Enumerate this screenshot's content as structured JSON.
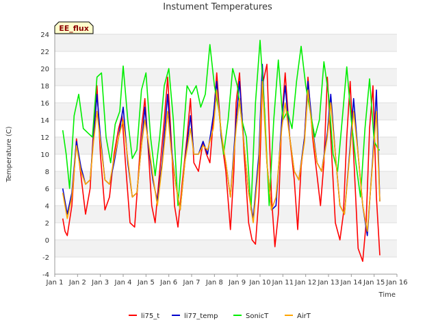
{
  "chart_data": {
    "type": "line",
    "title": "Instument Temperatures",
    "xlabel": "Time",
    "ylabel": "Temperature (C)",
    "badge": "EE_flux",
    "xlim": [
      1,
      16
    ],
    "ylim": [
      -4,
      24
    ],
    "xticks": [
      1,
      2,
      3,
      4,
      5,
      6,
      7,
      8,
      9,
      10,
      11,
      12,
      13,
      14,
      15,
      16
    ],
    "xtick_labels": [
      "Jan 1",
      "Jan 2",
      "Jan 3",
      "Jan 4",
      "Jan 5",
      "Jan 6",
      "Jan 7",
      "Jan 8",
      "Jan 9",
      "Jan 10",
      "Jan 11",
      "Jan 12",
      "Jan 13",
      "Jan 14",
      "Jan 15",
      "Jan 16"
    ],
    "yticks": [
      -4,
      -2,
      0,
      2,
      4,
      6,
      8,
      10,
      12,
      14,
      16,
      18,
      20,
      22,
      24
    ],
    "ytick_labels": [
      "-4",
      "-2",
      "0",
      "2",
      "4",
      "6",
      "8",
      "10",
      "12",
      "14",
      "16",
      "18",
      "20",
      "22",
      "24"
    ],
    "series": [
      {
        "name": "li75_t",
        "color": "#ff0000",
        "x": [
          1.35,
          1.45,
          1.55,
          1.75,
          1.95,
          2.15,
          2.35,
          2.55,
          2.7,
          2.85,
          3.0,
          3.2,
          3.4,
          3.6,
          3.8,
          3.95,
          4.1,
          4.3,
          4.5,
          4.65,
          4.8,
          4.95,
          5.1,
          5.25,
          5.4,
          5.6,
          5.8,
          5.95,
          6.1,
          6.25,
          6.4,
          6.6,
          6.8,
          6.95,
          7.1,
          7.3,
          7.5,
          7.65,
          7.8,
          7.95,
          8.1,
          8.3,
          8.5,
          8.7,
          8.85,
          8.95,
          9.1,
          9.3,
          9.5,
          9.65,
          9.8,
          9.95,
          10.1,
          10.3,
          10.5,
          10.65,
          10.8,
          10.95,
          11.1,
          11.3,
          11.5,
          11.65,
          11.8,
          11.95,
          12.1,
          12.3,
          12.5,
          12.65,
          12.8,
          12.95,
          13.1,
          13.3,
          13.5,
          13.65,
          13.8,
          13.95,
          14.1,
          14.3,
          14.5,
          14.65,
          14.8,
          14.95,
          15.1,
          15.25
        ],
        "y": [
          2.5,
          1.0,
          0.5,
          4.0,
          11.8,
          7.5,
          3.0,
          6.0,
          13.0,
          18.0,
          10.0,
          3.5,
          5.0,
          10.0,
          13.0,
          14.5,
          9.0,
          2.0,
          1.5,
          7.0,
          13.0,
          16.5,
          10.5,
          4.0,
          2.0,
          8.0,
          14.0,
          19.0,
          12.0,
          4.0,
          1.5,
          7.0,
          12.0,
          16.5,
          9.0,
          8.0,
          11.5,
          10.0,
          9.0,
          14.0,
          19.5,
          12.0,
          8.0,
          1.2,
          8.0,
          16.0,
          19.5,
          10.0,
          2.0,
          0.0,
          -0.5,
          5.0,
          18.0,
          20.5,
          5.0,
          -0.8,
          3.0,
          14.0,
          19.5,
          12.0,
          7.0,
          1.2,
          8.5,
          12.0,
          19.0,
          12.0,
          7.5,
          4.0,
          9.0,
          19.0,
          12.0,
          2.0,
          0.0,
          3.0,
          12.0,
          18.5,
          10.0,
          -1.0,
          -2.5,
          2.0,
          13.0,
          18.0,
          5.0,
          -1.8
        ]
      },
      {
        "name": "li77_temp",
        "color": "#0000cc",
        "x": [
          1.35,
          1.55,
          1.75,
          1.95,
          2.15,
          2.35,
          2.55,
          2.7,
          2.85,
          3.0,
          3.2,
          3.4,
          3.6,
          3.8,
          4.0,
          4.2,
          4.4,
          4.6,
          4.8,
          4.95,
          5.1,
          5.3,
          5.5,
          5.7,
          5.95,
          6.1,
          6.3,
          6.5,
          6.7,
          6.95,
          7.1,
          7.3,
          7.5,
          7.7,
          7.95,
          8.1,
          8.3,
          8.5,
          8.7,
          8.95,
          9.1,
          9.3,
          9.5,
          9.7,
          9.95,
          10.1,
          10.3,
          10.5,
          10.7,
          10.95,
          11.1,
          11.3,
          11.5,
          11.7,
          11.95,
          12.1,
          12.3,
          12.5,
          12.7,
          12.95,
          13.1,
          13.3,
          13.5,
          13.7,
          13.95,
          14.1,
          14.3,
          14.5,
          14.7,
          14.95,
          15.1,
          15.25
        ],
        "y": [
          6.0,
          3.0,
          5.5,
          11.5,
          8.5,
          6.5,
          7.0,
          12.0,
          17.0,
          12.0,
          7.0,
          6.5,
          9.0,
          12.0,
          15.5,
          9.0,
          5.0,
          5.5,
          11.0,
          15.5,
          11.0,
          7.0,
          4.5,
          9.0,
          17.0,
          11.0,
          6.5,
          3.5,
          9.0,
          14.5,
          10.0,
          10.0,
          11.5,
          10.0,
          14.5,
          18.5,
          12.0,
          9.0,
          5.0,
          14.0,
          18.5,
          11.0,
          5.5,
          2.5,
          10.0,
          20.5,
          9.0,
          3.5,
          4.0,
          14.0,
          18.0,
          12.0,
          8.0,
          7.0,
          12.0,
          18.5,
          13.0,
          9.0,
          8.0,
          12.5,
          17.0,
          10.0,
          4.0,
          3.0,
          11.0,
          16.5,
          10.0,
          4.0,
          0.5,
          10.0,
          17.5,
          4.5
        ]
      },
      {
        "name": "SonicT",
        "color": "#00ee00",
        "x": [
          1.35,
          1.5,
          1.65,
          1.85,
          2.05,
          2.25,
          2.45,
          2.65,
          2.85,
          3.05,
          3.25,
          3.45,
          3.65,
          3.85,
          4.0,
          4.2,
          4.4,
          4.6,
          4.8,
          5.0,
          5.2,
          5.4,
          5.6,
          5.8,
          6.0,
          6.2,
          6.4,
          6.6,
          6.8,
          7.0,
          7.2,
          7.4,
          7.6,
          7.8,
          8.0,
          8.2,
          8.4,
          8.6,
          8.8,
          9.0,
          9.2,
          9.4,
          9.6,
          9.8,
          10.0,
          10.2,
          10.4,
          10.6,
          10.8,
          11.0,
          11.2,
          11.4,
          11.6,
          11.8,
          12.0,
          12.2,
          12.4,
          12.6,
          12.8,
          13.0,
          13.2,
          13.4,
          13.6,
          13.8,
          14.0,
          14.2,
          14.4,
          14.6,
          14.8,
          15.0,
          15.2,
          15.25
        ],
        "y": [
          12.8,
          10.0,
          6.0,
          14.5,
          17.0,
          13.0,
          12.5,
          12.0,
          19.0,
          19.5,
          12.0,
          9.0,
          13.5,
          15.0,
          20.3,
          14.0,
          9.5,
          10.5,
          17.5,
          19.5,
          12.0,
          7.5,
          12.0,
          18.0,
          20.0,
          14.0,
          4.0,
          11.0,
          18.0,
          17.0,
          18.0,
          15.5,
          17.0,
          22.8,
          18.0,
          15.0,
          10.0,
          14.0,
          20.0,
          18.0,
          14.0,
          12.0,
          3.5,
          16.0,
          23.3,
          15.0,
          4.0,
          14.0,
          21.0,
          14.0,
          15.0,
          13.0,
          18.5,
          22.6,
          18.0,
          15.0,
          12.0,
          14.0,
          20.8,
          17.0,
          10.0,
          8.0,
          14.0,
          20.2,
          14.0,
          9.0,
          5.0,
          13.0,
          18.8,
          11.5,
          10.5,
          10.5
        ]
      },
      {
        "name": "AirT",
        "color": "#ffa500",
        "x": [
          1.35,
          1.55,
          1.75,
          1.95,
          2.15,
          2.35,
          2.55,
          2.7,
          2.85,
          3.0,
          3.2,
          3.4,
          3.6,
          3.8,
          4.0,
          4.2,
          4.4,
          4.6,
          4.8,
          4.95,
          5.1,
          5.3,
          5.5,
          5.7,
          5.95,
          6.1,
          6.3,
          6.5,
          6.7,
          6.95,
          7.1,
          7.3,
          7.5,
          7.7,
          7.95,
          8.1,
          8.3,
          8.5,
          8.7,
          8.95,
          9.1,
          9.3,
          9.5,
          9.7,
          9.95,
          10.1,
          10.3,
          10.5,
          10.7,
          10.95,
          11.1,
          11.3,
          11.5,
          11.7,
          11.95,
          12.1,
          12.3,
          12.5,
          12.7,
          12.95,
          13.1,
          13.3,
          13.5,
          13.7,
          13.95,
          14.1,
          14.3,
          14.5,
          14.7,
          14.95,
          15.1,
          15.25
        ],
        "y": [
          5.5,
          2.5,
          5.0,
          11.0,
          8.0,
          6.5,
          7.0,
          11.5,
          15.0,
          11.5,
          7.0,
          6.5,
          9.5,
          12.0,
          14.0,
          9.5,
          5.0,
          5.5,
          11.0,
          14.0,
          11.5,
          7.5,
          4.0,
          8.5,
          15.0,
          10.5,
          6.5,
          3.5,
          9.0,
          13.0,
          10.0,
          10.0,
          11.0,
          10.5,
          13.0,
          17.5,
          12.5,
          9.0,
          5.0,
          13.0,
          16.5,
          11.0,
          5.5,
          2.0,
          9.0,
          18.5,
          9.0,
          3.5,
          5.0,
          13.0,
          16.0,
          12.0,
          8.0,
          7.0,
          11.5,
          17.5,
          12.5,
          9.0,
          8.0,
          12.0,
          16.0,
          10.0,
          4.0,
          3.0,
          10.5,
          15.0,
          10.0,
          4.0,
          1.0,
          9.5,
          15.0,
          4.5
        ]
      }
    ]
  }
}
